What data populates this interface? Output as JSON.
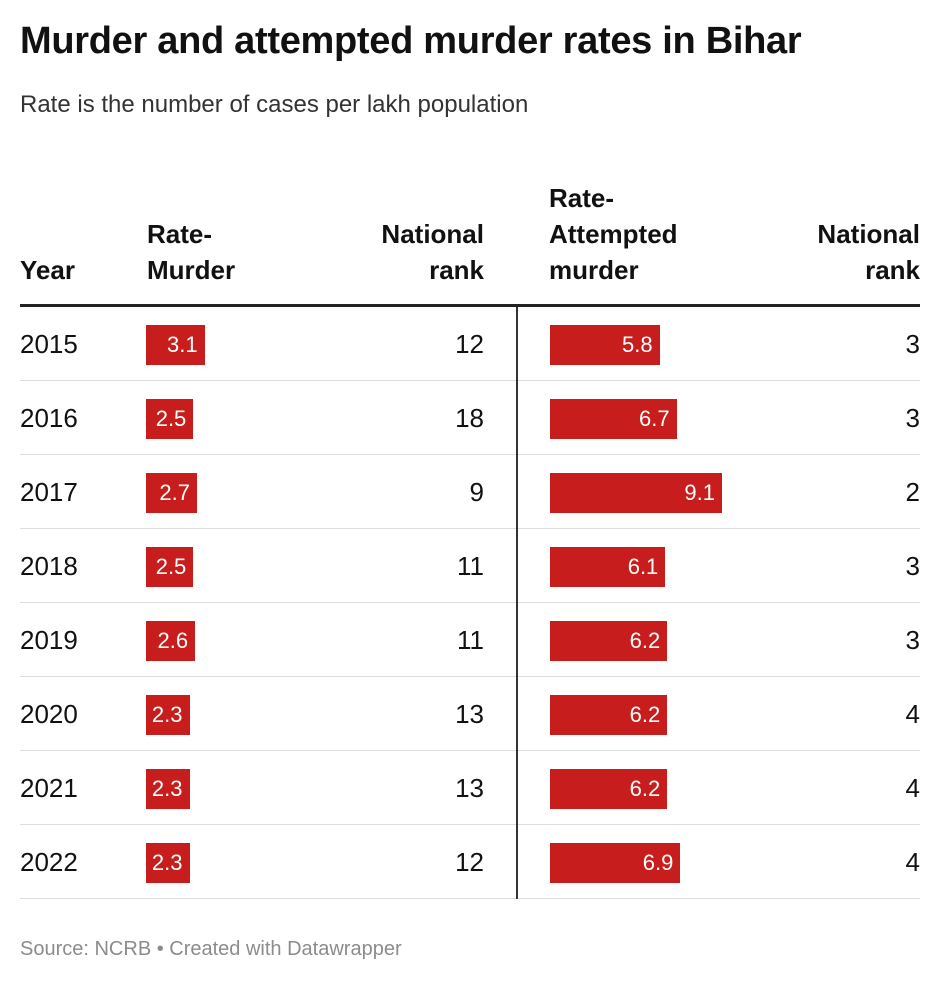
{
  "title": "Murder and attempted murder rates in Bihar",
  "subtitle": "Rate is the number of cases per lakh population",
  "footer": "Source: NCRB • Created with Datawrapper",
  "colors": {
    "bar": "#c71e1d"
  },
  "chart_data": {
    "type": "table",
    "title": "Murder and attempted murder rates in Bihar",
    "subtitle": "Rate is the number of cases per lakh population",
    "columns": [
      "Year",
      "Rate-\nMurder",
      "National\nrank",
      "Rate-\nAttempted\nmurder",
      "National\nrank"
    ],
    "bar_scale_max": 10.5,
    "rows": [
      {
        "year": "2015",
        "murder_rate": 3.1,
        "murder_rank": 12,
        "attempt_rate": 5.8,
        "attempt_rank": 3
      },
      {
        "year": "2016",
        "murder_rate": 2.5,
        "murder_rank": 18,
        "attempt_rate": 6.7,
        "attempt_rank": 3
      },
      {
        "year": "2017",
        "murder_rate": 2.7,
        "murder_rank": 9,
        "attempt_rate": 9.1,
        "attempt_rank": 2
      },
      {
        "year": "2018",
        "murder_rate": 2.5,
        "murder_rank": 11,
        "attempt_rate": 6.1,
        "attempt_rank": 3
      },
      {
        "year": "2019",
        "murder_rate": 2.6,
        "murder_rank": 11,
        "attempt_rate": 6.2,
        "attempt_rank": 3
      },
      {
        "year": "2020",
        "murder_rate": 2.3,
        "murder_rank": 13,
        "attempt_rate": 6.2,
        "attempt_rank": 4
      },
      {
        "year": "2021",
        "murder_rate": 2.3,
        "murder_rank": 13,
        "attempt_rate": 6.2,
        "attempt_rank": 4
      },
      {
        "year": "2022",
        "murder_rate": 2.3,
        "murder_rank": 12,
        "attempt_rate": 6.9,
        "attempt_rank": 4
      }
    ]
  }
}
